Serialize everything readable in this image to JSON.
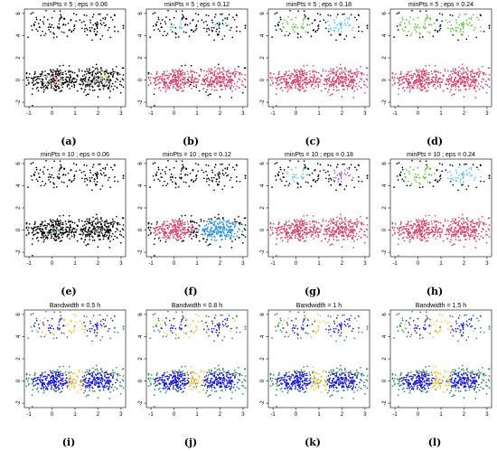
{
  "chart_data": [
    {
      "id": "a",
      "type": "scatter",
      "method": "dbscan",
      "title": "minPts =  5 ; eps =  0.06",
      "caption": "(a)",
      "x_ticks": [
        "-1",
        "0",
        "1",
        "2",
        "3"
      ],
      "y_ticks": [
        "-2",
        "0",
        "2",
        "4",
        "6"
      ],
      "xlim": [
        -1.2,
        3.2
      ],
      "ylim": [
        -2.4,
        6.4
      ],
      "colors": {
        "noise": "#000000",
        "clusters": [
          "#d0486c",
          "#5cc0e0",
          "#5cc040",
          "#a060d0",
          "#e0c040"
        ]
      }
    },
    {
      "id": "b",
      "type": "scatter",
      "method": "dbscan",
      "title": "minPts =  5 ; eps =  0.12",
      "caption": "(b)",
      "x_ticks": [
        "-1",
        "0",
        "1",
        "2",
        "3"
      ],
      "y_ticks": [
        "-2",
        "0",
        "2",
        "4",
        "6"
      ],
      "xlim": [
        -1.2,
        3.2
      ],
      "ylim": [
        -2.4,
        6.4
      ],
      "colors": {
        "noise": "#000000",
        "clusters": [
          "#d0486c",
          "#5cc0e0",
          "#5cc040",
          "#a060d0",
          "#e0c040"
        ]
      }
    },
    {
      "id": "c",
      "type": "scatter",
      "method": "dbscan",
      "title": "minPts =  5 ; eps =  0.18",
      "caption": "(c)",
      "x_ticks": [
        "-1",
        "0",
        "1",
        "2",
        "3"
      ],
      "y_ticks": [
        "-2",
        "0",
        "2",
        "4",
        "6"
      ],
      "xlim": [
        -1.2,
        3.2
      ],
      "ylim": [
        -2.4,
        6.4
      ],
      "colors": {
        "noise": "#000000",
        "clusters": [
          "#d0486c",
          "#5cc0e0",
          "#5cc040"
        ]
      }
    },
    {
      "id": "d",
      "type": "scatter",
      "method": "dbscan",
      "title": "minPts =  5 ; eps =  0.24",
      "caption": "(d)",
      "x_ticks": [
        "-1",
        "0",
        "1",
        "2",
        "3"
      ],
      "y_ticks": [
        "-2",
        "0",
        "2",
        "4",
        "6"
      ],
      "xlim": [
        -1.2,
        3.2
      ],
      "ylim": [
        -2.4,
        6.4
      ],
      "colors": {
        "noise": "#000000",
        "clusters": [
          "#d0486c",
          "#5cc040"
        ]
      }
    },
    {
      "id": "e",
      "type": "scatter",
      "method": "dbscan",
      "title": "minPts =  10 ; eps =  0.06",
      "caption": "(e)",
      "x_ticks": [
        "-1",
        "0",
        "1",
        "2",
        "3"
      ],
      "y_ticks": [
        "-2",
        "0",
        "2",
        "4",
        "6"
      ],
      "xlim": [
        -1.2,
        3.2
      ],
      "ylim": [
        -2.4,
        6.4
      ],
      "colors": {
        "noise": "#000000",
        "clusters": [
          "#d0486c",
          "#5cc0e0",
          "#5cc040"
        ]
      }
    },
    {
      "id": "f",
      "type": "scatter",
      "method": "dbscan",
      "title": "minPts =  10 ; eps =  0.12",
      "caption": "(f)",
      "x_ticks": [
        "-1",
        "0",
        "1",
        "2",
        "3"
      ],
      "y_ticks": [
        "-2",
        "0",
        "2",
        "4",
        "6"
      ],
      "xlim": [
        -1.2,
        3.2
      ],
      "ylim": [
        -2.4,
        6.4
      ],
      "colors": {
        "noise": "#000000",
        "clusters": [
          "#d0486c",
          "#3090e0",
          "#5cc0e0",
          "#a060d0"
        ]
      }
    },
    {
      "id": "g",
      "type": "scatter",
      "method": "dbscan",
      "title": "minPts =  10 ; eps =  0.18",
      "caption": "(g)",
      "x_ticks": [
        "-1",
        "0",
        "1",
        "2",
        "3"
      ],
      "y_ticks": [
        "-2",
        "0",
        "2",
        "4",
        "6"
      ],
      "xlim": [
        -1.2,
        3.2
      ],
      "ylim": [
        -2.4,
        6.4
      ],
      "colors": {
        "noise": "#000000",
        "clusters": [
          "#d0486c",
          "#5cc0e0",
          "#a060d0"
        ]
      }
    },
    {
      "id": "h",
      "type": "scatter",
      "method": "dbscan",
      "title": "minPts =  10 ; eps =  0.24",
      "caption": "(h)",
      "x_ticks": [
        "-1",
        "0",
        "1",
        "2",
        "3"
      ],
      "y_ticks": [
        "-2",
        "0",
        "2",
        "4",
        "6"
      ],
      "xlim": [
        -1.2,
        3.2
      ],
      "ylim": [
        -2.4,
        6.4
      ],
      "colors": {
        "noise": "#000000",
        "clusters": [
          "#d0486c",
          "#5cc040",
          "#5cc0e0"
        ]
      }
    },
    {
      "id": "i",
      "type": "scatter",
      "method": "meanshift",
      "title": "Bandwidth =  0.5 h",
      "caption": "(i)",
      "x_ticks": [
        "-1",
        "0",
        "1",
        "2",
        "3"
      ],
      "y_ticks": [
        "-2",
        "0",
        "2",
        "4",
        "6"
      ],
      "xlim": [
        -1.2,
        3.2
      ],
      "ylim": [
        -2.4,
        6.4
      ],
      "colors": {
        "core": "#1a1ad0",
        "mid": "#f0c040",
        "edge": "#2e8b57"
      }
    },
    {
      "id": "j",
      "type": "scatter",
      "method": "meanshift",
      "title": "Bandwidth =  0.8 h",
      "caption": "(j)",
      "x_ticks": [
        "-1",
        "0",
        "1",
        "2",
        "3"
      ],
      "y_ticks": [
        "-2",
        "0",
        "2",
        "4",
        "6"
      ],
      "xlim": [
        -1.2,
        3.2
      ],
      "ylim": [
        -2.4,
        6.4
      ],
      "colors": {
        "core": "#1a1ad0",
        "mid": "#f0c040",
        "edge": "#2e8b57"
      }
    },
    {
      "id": "k",
      "type": "scatter",
      "method": "meanshift",
      "title": "Bandwidth =  1 h",
      "caption": "(k)",
      "x_ticks": [
        "-1",
        "0",
        "1",
        "2",
        "3"
      ],
      "y_ticks": [
        "-2",
        "0",
        "2",
        "4",
        "6"
      ],
      "xlim": [
        -1.2,
        3.2
      ],
      "ylim": [
        -2.4,
        6.4
      ],
      "colors": {
        "core": "#1a1ad0",
        "mid": "#f0c040",
        "edge": "#2e8b57"
      }
    },
    {
      "id": "l",
      "type": "scatter",
      "method": "meanshift",
      "title": "Bandwidth =  1.5 h",
      "caption": "(l)",
      "x_ticks": [
        "-1",
        "0",
        "1",
        "2",
        "3"
      ],
      "y_ticks": [
        "-2",
        "0",
        "2",
        "4",
        "6"
      ],
      "xlim": [
        -1.2,
        3.2
      ],
      "ylim": [
        -2.4,
        6.4
      ],
      "colors": {
        "core": "#1a1ad0",
        "mid": "#f0c040",
        "edge": "#2e8b57"
      }
    }
  ]
}
